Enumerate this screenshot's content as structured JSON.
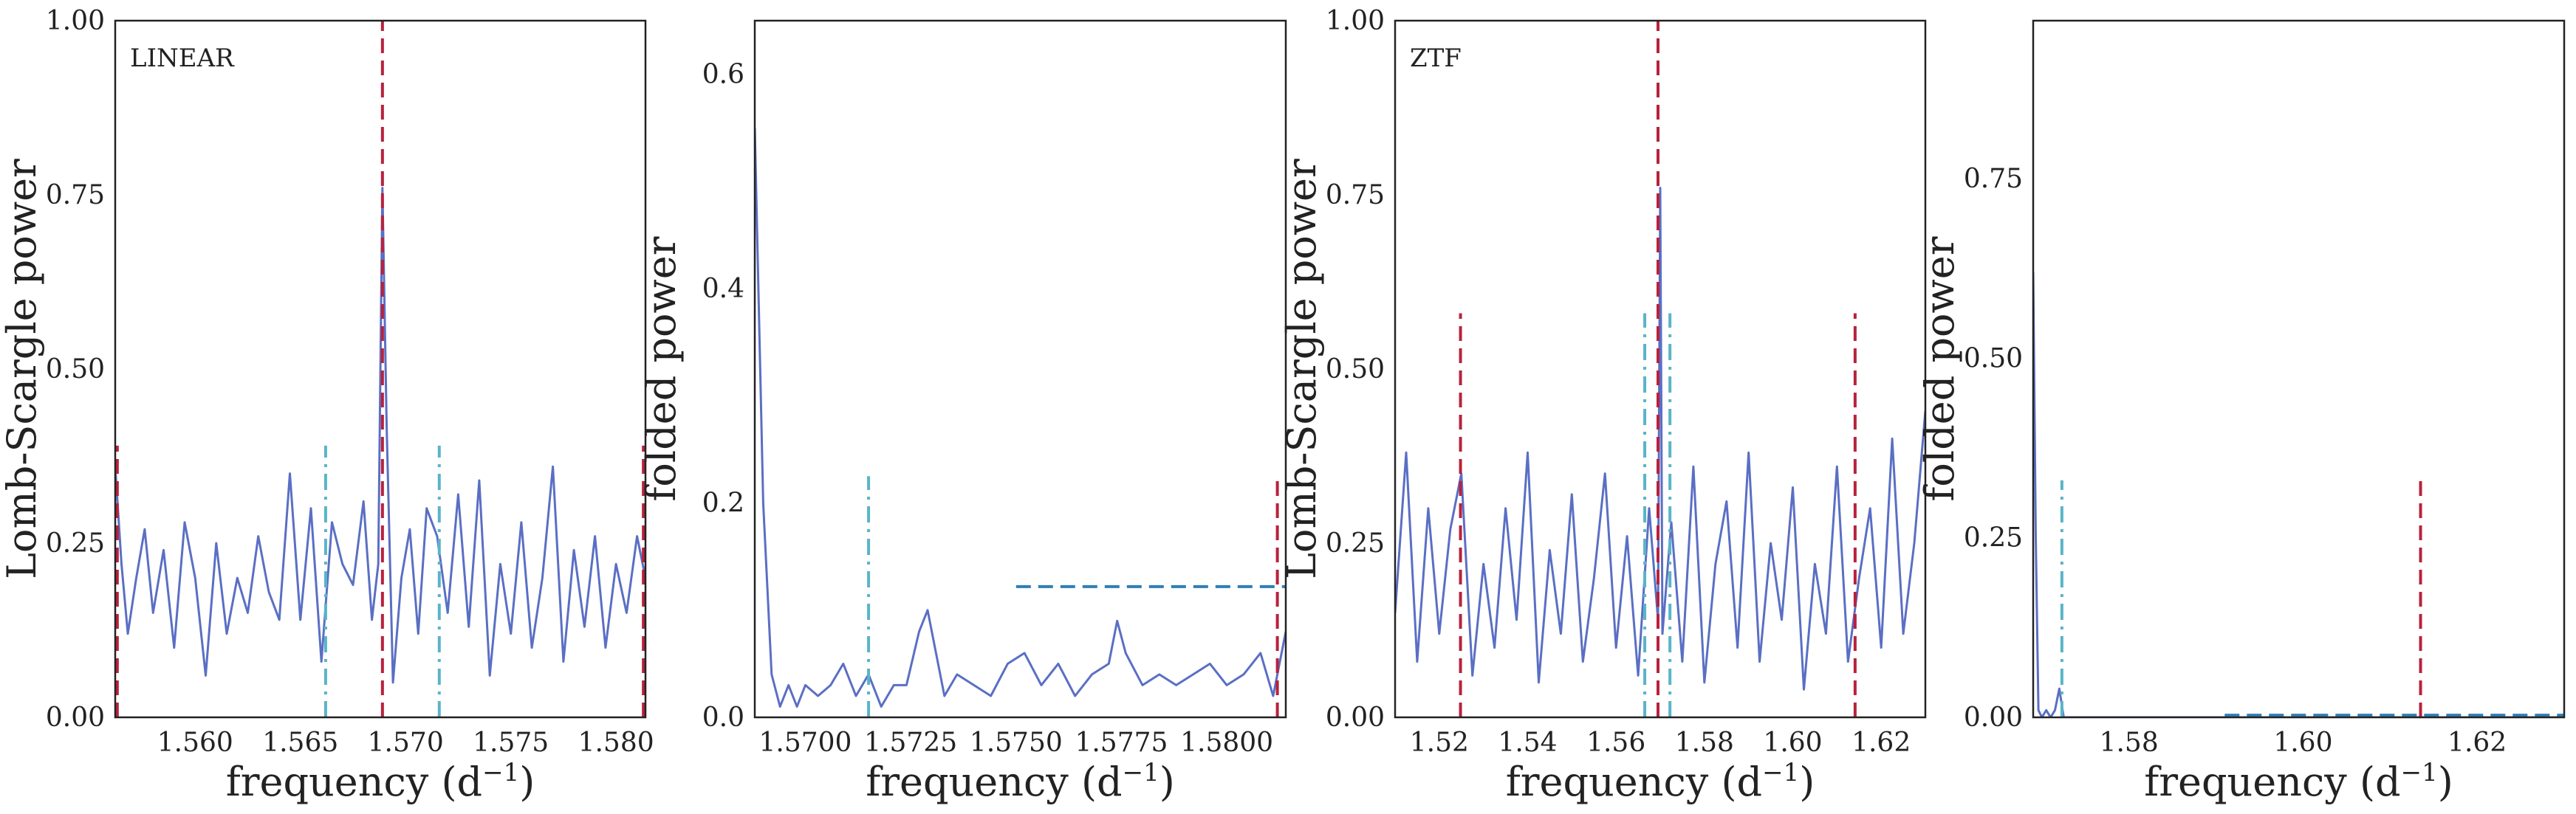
{
  "colors": {
    "series": "#5a6fc4",
    "red_marker": "#b7223c",
    "cyan_marker": "#5ab4c8",
    "blue_level": "#2f7fb5",
    "axes": "#222222"
  },
  "chart_data": [
    {
      "type": "line",
      "panel_tag": "LINEAR",
      "xlabel": "frequency (d",
      "xlabel_sup": "−1",
      "xlabel_tail": ")",
      "ylabel": "Lomb-Scargle power",
      "xlim": [
        1.5562,
        1.5814
      ],
      "ylim": [
        0.0,
        1.0
      ],
      "xticks": [
        1.56,
        1.565,
        1.57,
        1.575,
        1.58
      ],
      "xtick_labels": [
        "1.560",
        "1.565",
        "1.570",
        "1.575",
        "1.580"
      ],
      "yticks": [
        0.0,
        0.25,
        0.5,
        0.75,
        1.0
      ],
      "ytick_labels": [
        "0.00",
        "0.25",
        "0.50",
        "0.75",
        "1.00"
      ],
      "grid": false,
      "series": [
        {
          "style": "solid",
          "x": [
            1.5562,
            1.5565,
            1.5568,
            1.5572,
            1.5576,
            1.558,
            1.5585,
            1.559,
            1.5595,
            1.56,
            1.5605,
            1.561,
            1.5615,
            1.562,
            1.5625,
            1.563,
            1.5635,
            1.564,
            1.5645,
            1.565,
            1.5655,
            1.566,
            1.5665,
            1.567,
            1.5675,
            1.568,
            1.5684,
            1.5687,
            1.5689,
            1.5691,
            1.5694,
            1.5698,
            1.5702,
            1.5706,
            1.571,
            1.5715,
            1.572,
            1.5725,
            1.573,
            1.5735,
            1.574,
            1.5745,
            1.575,
            1.5755,
            1.576,
            1.5765,
            1.577,
            1.5775,
            1.578,
            1.5785,
            1.579,
            1.5795,
            1.58,
            1.5805,
            1.581,
            1.5814
          ],
          "y": [
            0.36,
            0.22,
            0.12,
            0.2,
            0.27,
            0.15,
            0.24,
            0.1,
            0.28,
            0.2,
            0.06,
            0.25,
            0.12,
            0.2,
            0.15,
            0.26,
            0.18,
            0.14,
            0.35,
            0.14,
            0.3,
            0.08,
            0.28,
            0.22,
            0.19,
            0.31,
            0.14,
            0.22,
            0.76,
            0.42,
            0.05,
            0.2,
            0.27,
            0.12,
            0.3,
            0.26,
            0.15,
            0.32,
            0.13,
            0.34,
            0.06,
            0.22,
            0.12,
            0.28,
            0.1,
            0.2,
            0.36,
            0.08,
            0.24,
            0.13,
            0.26,
            0.1,
            0.22,
            0.15,
            0.26,
            0.2
          ]
        }
      ],
      "vlines": [
        {
          "x": 1.5689,
          "ymax": 1.0,
          "color": "red",
          "style": "dashed"
        },
        {
          "x": 1.5563,
          "ymax": 0.39,
          "color": "red",
          "style": "dashed"
        },
        {
          "x": 1.5813,
          "ymax": 0.39,
          "color": "red",
          "style": "dashed"
        },
        {
          "x": 1.5662,
          "ymax": 0.39,
          "color": "cyan",
          "style": "dashdot"
        },
        {
          "x": 1.5716,
          "ymax": 0.39,
          "color": "cyan",
          "style": "dashdot"
        }
      ],
      "hlines": []
    },
    {
      "type": "line",
      "panel_tag": "",
      "xlabel": "frequency (d",
      "xlabel_sup": "−1",
      "xlabel_tail": ")",
      "ylabel": "folded power",
      "xlim": [
        1.5688,
        1.5814
      ],
      "ylim": [
        0.0,
        0.65
      ],
      "xticks": [
        1.57,
        1.5725,
        1.575,
        1.5775,
        1.58
      ],
      "xtick_labels": [
        "1.5700",
        "1.5725",
        "1.5750",
        "1.5775",
        "1.5800"
      ],
      "yticks": [
        0.0,
        0.2,
        0.4,
        0.6
      ],
      "ytick_labels": [
        "0.0",
        "0.2",
        "0.4",
        "0.6"
      ],
      "grid": false,
      "series": [
        {
          "style": "solid",
          "x": [
            1.5688,
            1.569,
            1.5692,
            1.5694,
            1.5696,
            1.5698,
            1.57,
            1.5703,
            1.5706,
            1.5709,
            1.5712,
            1.5715,
            1.5718,
            1.5721,
            1.5724,
            1.5727,
            1.5729,
            1.5731,
            1.5733,
            1.5736,
            1.574,
            1.5744,
            1.5748,
            1.5752,
            1.5756,
            1.576,
            1.5764,
            1.5768,
            1.5772,
            1.5774,
            1.5776,
            1.578,
            1.5784,
            1.5788,
            1.5792,
            1.5796,
            1.58,
            1.5804,
            1.5808,
            1.5811,
            1.5814
          ],
          "y": [
            0.55,
            0.2,
            0.04,
            0.01,
            0.03,
            0.01,
            0.03,
            0.02,
            0.03,
            0.05,
            0.02,
            0.04,
            0.01,
            0.03,
            0.03,
            0.08,
            0.1,
            0.06,
            0.02,
            0.04,
            0.03,
            0.02,
            0.05,
            0.06,
            0.03,
            0.05,
            0.02,
            0.04,
            0.05,
            0.09,
            0.06,
            0.03,
            0.04,
            0.03,
            0.04,
            0.05,
            0.03,
            0.04,
            0.06,
            0.02,
            0.08
          ]
        }
      ],
      "vlines": [
        {
          "x": 1.5715,
          "ymax": 0.225,
          "color": "cyan",
          "style": "dashdot"
        },
        {
          "x": 1.5812,
          "ymax": 0.225,
          "color": "red",
          "style": "dashed"
        }
      ],
      "hlines": [
        {
          "y": 0.122,
          "xmin": 1.575,
          "xmax": 1.5814,
          "color": "blue",
          "style": "dashed"
        }
      ]
    },
    {
      "type": "line",
      "panel_tag": "ZTF",
      "xlabel": "frequency (d",
      "xlabel_sup": "−1",
      "xlabel_tail": ")",
      "ylabel": "Lomb-Scargle power",
      "xlim": [
        1.51,
        1.63
      ],
      "ylim": [
        0.0,
        1.0
      ],
      "xticks": [
        1.52,
        1.54,
        1.56,
        1.58,
        1.6,
        1.62
      ],
      "xtick_labels": [
        "1.52",
        "1.54",
        "1.56",
        "1.58",
        "1.60",
        "1.62"
      ],
      "yticks": [
        0.0,
        0.25,
        0.5,
        0.75,
        1.0
      ],
      "ytick_labels": [
        "0.00",
        "0.25",
        "0.50",
        "0.75",
        "1.00"
      ],
      "grid": false,
      "series": [
        {
          "style": "solid",
          "x": [
            1.51,
            1.5125,
            1.515,
            1.5175,
            1.52,
            1.5225,
            1.525,
            1.5275,
            1.53,
            1.5325,
            1.535,
            1.5375,
            1.54,
            1.5425,
            1.545,
            1.5475,
            1.55,
            1.5525,
            1.555,
            1.5575,
            1.56,
            1.5625,
            1.565,
            1.5675,
            1.5695,
            1.57,
            1.5705,
            1.5725,
            1.575,
            1.5775,
            1.58,
            1.5825,
            1.585,
            1.5875,
            1.59,
            1.5925,
            1.595,
            1.5975,
            1.6,
            1.6025,
            1.605,
            1.6075,
            1.61,
            1.6125,
            1.615,
            1.6175,
            1.62,
            1.6225,
            1.625,
            1.6275,
            1.63
          ],
          "y": [
            0.15,
            0.38,
            0.08,
            0.3,
            0.12,
            0.27,
            0.35,
            0.06,
            0.22,
            0.1,
            0.3,
            0.14,
            0.38,
            0.05,
            0.24,
            0.12,
            0.32,
            0.08,
            0.2,
            0.35,
            0.1,
            0.26,
            0.06,
            0.3,
            0.14,
            0.76,
            0.12,
            0.28,
            0.08,
            0.36,
            0.05,
            0.22,
            0.31,
            0.1,
            0.38,
            0.08,
            0.25,
            0.14,
            0.33,
            0.04,
            0.22,
            0.12,
            0.36,
            0.08,
            0.2,
            0.3,
            0.1,
            0.4,
            0.12,
            0.25,
            0.44
          ]
        }
      ],
      "vlines": [
        {
          "x": 1.5695,
          "ymax": 1.0,
          "color": "red",
          "style": "dashed"
        },
        {
          "x": 1.5248,
          "ymax": 0.58,
          "color": "red",
          "style": "dashed"
        },
        {
          "x": 1.6141,
          "ymax": 0.58,
          "color": "red",
          "style": "dashed"
        },
        {
          "x": 1.5665,
          "ymax": 0.58,
          "color": "cyan",
          "style": "dashdot"
        },
        {
          "x": 1.5722,
          "ymax": 0.58,
          "color": "cyan",
          "style": "dashdot"
        }
      ],
      "hlines": []
    },
    {
      "type": "line",
      "panel_tag": "",
      "xlabel": "frequency (d",
      "xlabel_sup": "−1",
      "xlabel_tail": ")",
      "ylabel": "folded power",
      "xlim": [
        1.569,
        1.63
      ],
      "ylim": [
        0.0,
        0.97
      ],
      "xticks": [
        1.58,
        1.6,
        1.62
      ],
      "xtick_labels": [
        "1.58",
        "1.60",
        "1.62"
      ],
      "yticks": [
        0.0,
        0.25,
        0.5,
        0.75
      ],
      "ytick_labels": [
        "0.00",
        "0.25",
        "0.50",
        "0.75"
      ],
      "grid": false,
      "series": [
        {
          "style": "solid",
          "x": [
            1.569,
            1.5693,
            1.5696,
            1.57,
            1.5705,
            1.571,
            1.5715,
            1.572,
            1.5725,
            1.573,
            1.574,
            1.575,
            1.58,
            1.59,
            1.6,
            1.61,
            1.62,
            1.63
          ],
          "y": [
            0.62,
            0.25,
            0.01,
            0.0,
            0.01,
            0.0,
            0.01,
            0.04,
            0.0,
            0.0,
            0.0,
            0.0,
            0.0,
            0.0,
            0.0,
            0.0,
            0.0,
            0.0
          ]
        }
      ],
      "vlines": [
        {
          "x": 1.5723,
          "ymax": 0.33,
          "color": "cyan",
          "style": "dashdot"
        },
        {
          "x": 1.6135,
          "ymax": 0.33,
          "color": "red",
          "style": "dashed"
        }
      ],
      "hlines": [
        {
          "y": 0.003,
          "xmin": 1.591,
          "xmax": 1.63,
          "color": "blue",
          "style": "dashed"
        }
      ]
    }
  ]
}
